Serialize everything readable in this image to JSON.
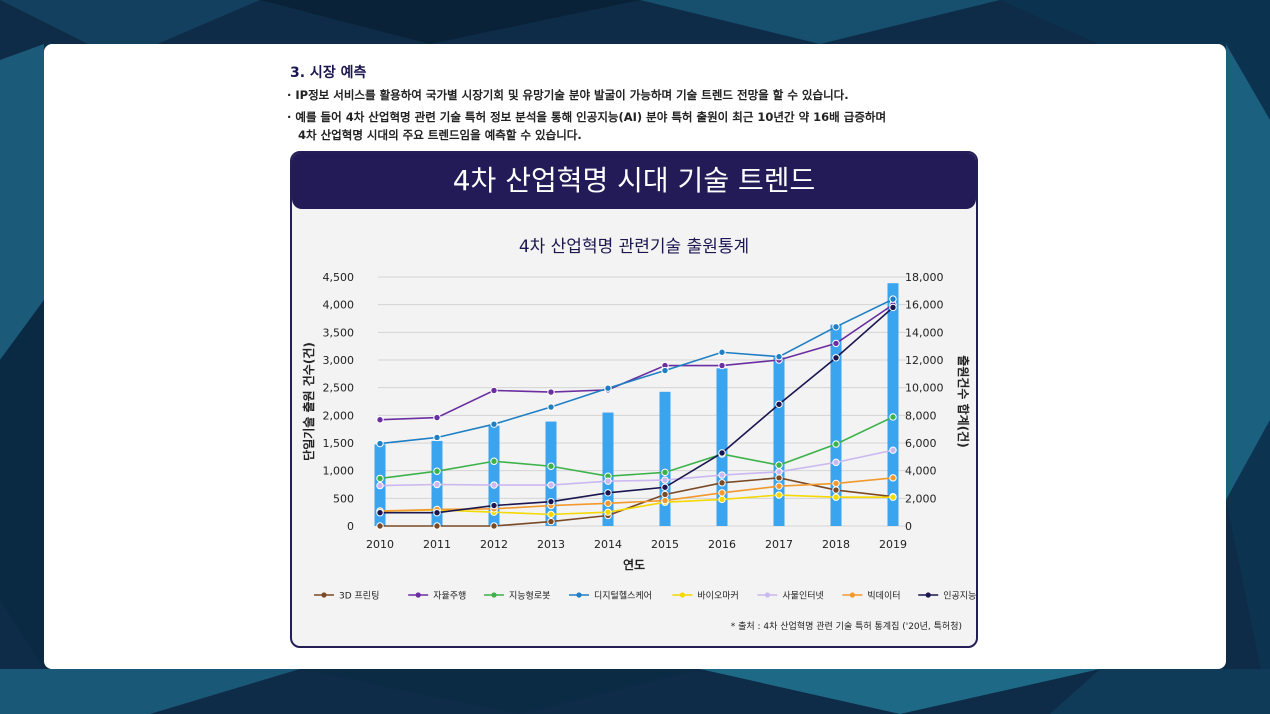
{
  "section": {
    "title": "3. 시장 예측",
    "bullets": [
      "· IP정보 서비스를 활용하여 국가별 시장기회 및 유망기술 분야 발굴이 가능하며 기술 트렌드 전망을 할 수 있습니다.",
      "· 예를 들어 4차 산업혁명 관련 기술 특허 정보 분석을 통해 인공지능(AI) 분야 특허 출원이 최근 10년간 약 16배 급증하며",
      "4차 산업혁명 시대의 주요 트렌드임을 예측할 수 있습니다."
    ]
  },
  "panel": {
    "title": "4차 산업혁명 시대 기술 트렌드"
  },
  "colors": {
    "card_bg": "#ffffff",
    "header_bg": "#231b57",
    "bar": "#3ba4ee"
  },
  "chart_data": {
    "type": "bar+line",
    "title": "4차 산업혁명 관련기술 출원통계",
    "xlabel": "연도",
    "ylabel_left": "단일기술 출원 건수(건)",
    "ylabel_right": "출원건수 합계(건)",
    "ylim_left": [
      0,
      4500
    ],
    "ylim_right": [
      0,
      18000
    ],
    "yticks_left": [
      "0",
      "500",
      "1,000",
      "1,500",
      "2,000",
      "2,500",
      "3,000",
      "3,500",
      "4,000",
      "4,500"
    ],
    "yticks_right": [
      "0",
      "2,000",
      "4,000",
      "6,000",
      "8,000",
      "10,000",
      "12,000",
      "14,000",
      "16,000",
      "18,000"
    ],
    "categories": [
      "2010",
      "2011",
      "2012",
      "2013",
      "2014",
      "2015",
      "2016",
      "2017",
      "2018",
      "2019"
    ],
    "bars": {
      "name": "합계",
      "color": "#3ba4ee",
      "axis": "right",
      "values": [
        5900,
        6150,
        7250,
        7550,
        8200,
        9700,
        11400,
        12200,
        14550,
        17550
      ]
    },
    "series": [
      {
        "name": "3D 프린팅",
        "color": "#7a4a26",
        "values": [
          0,
          0,
          0,
          80,
          190,
          570,
          780,
          870,
          650,
          530
        ]
      },
      {
        "name": "자율주행",
        "color": "#6a2ea0",
        "values": [
          1920,
          1960,
          2450,
          2420,
          2460,
          2900,
          2900,
          3000,
          3300,
          4000
        ]
      },
      {
        "name": "지능형로봇",
        "color": "#3db24b",
        "values": [
          860,
          990,
          1170,
          1080,
          900,
          970,
          1300,
          1100,
          1480,
          1970
        ]
      },
      {
        "name": "디지털헬스케어",
        "color": "#1f7fc4",
        "values": [
          1490,
          1600,
          1840,
          2150,
          2490,
          2810,
          3140,
          3060,
          3600,
          4100
        ]
      },
      {
        "name": "바이오마커",
        "color": "#f5d800",
        "values": [
          270,
          290,
          250,
          210,
          250,
          430,
          480,
          560,
          520,
          520
        ]
      },
      {
        "name": "사물인터넷",
        "color": "#cbb8f0",
        "values": [
          730,
          750,
          740,
          740,
          810,
          830,
          920,
          980,
          1150,
          1370
        ]
      },
      {
        "name": "빅데이터",
        "color": "#f2992e",
        "values": [
          270,
          300,
          310,
          370,
          410,
          460,
          600,
          720,
          770,
          870
        ]
      },
      {
        "name": "인공지능",
        "color": "#1b1650",
        "values": [
          240,
          240,
          370,
          440,
          600,
          700,
          1320,
          2200,
          3040,
          3950
        ]
      }
    ],
    "source_note": "* 출처 : 4차 산업혁명 관련 기술 특허 통계집 ('20년, 특허청)"
  }
}
